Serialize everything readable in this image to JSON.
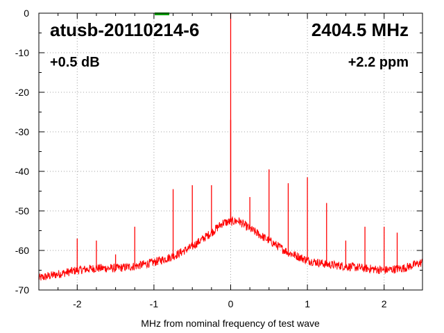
{
  "chart_data": {
    "type": "line",
    "title_left": "atusb-20110214-6",
    "title_right": "2404.5 MHz",
    "annotation_left": "+0.5 dB",
    "annotation_right": "+2.2 ppm",
    "xlabel": "MHz from nominal frequency of test wave",
    "ylabel": "",
    "xlim": [
      -2.5,
      2.5
    ],
    "ylim": [
      -70,
      0
    ],
    "x_ticks": [
      -2,
      -1,
      0,
      1,
      2
    ],
    "x_tick_labels": [
      "-2",
      "-1",
      "0",
      "1",
      "2"
    ],
    "y_ticks": [
      0,
      -10,
      -20,
      -30,
      -40,
      -50,
      -60,
      -70
    ],
    "y_tick_labels": [
      "0",
      "-10",
      "-20",
      "-30",
      "-40",
      "-50",
      "-60",
      "-70"
    ],
    "grid": true,
    "series": [
      {
        "color": "#ff0000",
        "noise_floor": {
          "x": [
            -2.5,
            -2.25,
            -2.0,
            -1.75,
            -1.5,
            -1.25,
            -1.0,
            -0.75,
            -0.5,
            -0.25,
            -0.1,
            0.1,
            0.25,
            0.5,
            0.75,
            1.0,
            1.25,
            1.5,
            1.75,
            2.0,
            2.25,
            2.5
          ],
          "y": [
            -67,
            -66,
            -65,
            -64.5,
            -64.5,
            -64,
            -63,
            -61.5,
            -59,
            -55.5,
            -53,
            -52.5,
            -54.5,
            -57.5,
            -60.5,
            -62.5,
            -63.5,
            -64,
            -64.5,
            -65,
            -64.5,
            -63
          ]
        },
        "spurs": [
          {
            "x": 0.0,
            "y": 0
          },
          {
            "x": 0.0,
            "y": -27
          },
          {
            "x": -2.0,
            "y": -57
          },
          {
            "x": -1.75,
            "y": -57.5
          },
          {
            "x": -1.5,
            "y": -61
          },
          {
            "x": -1.25,
            "y": -54
          },
          {
            "x": -0.75,
            "y": -44.5
          },
          {
            "x": -0.5,
            "y": -43.5
          },
          {
            "x": -0.25,
            "y": -43.5
          },
          {
            "x": 0.25,
            "y": -46.5
          },
          {
            "x": 0.5,
            "y": -39.5
          },
          {
            "x": 0.75,
            "y": -43
          },
          {
            "x": 1.0,
            "y": -41.5
          },
          {
            "x": 1.25,
            "y": -48
          },
          {
            "x": 1.5,
            "y": -57.5
          },
          {
            "x": 1.75,
            "y": -54
          },
          {
            "x": 2.0,
            "y": -54
          },
          {
            "x": 2.17,
            "y": -55.5
          }
        ]
      }
    ],
    "marker": {
      "x_start": -0.99,
      "x_end": -0.8,
      "y": 0,
      "color": "#00a000"
    }
  }
}
